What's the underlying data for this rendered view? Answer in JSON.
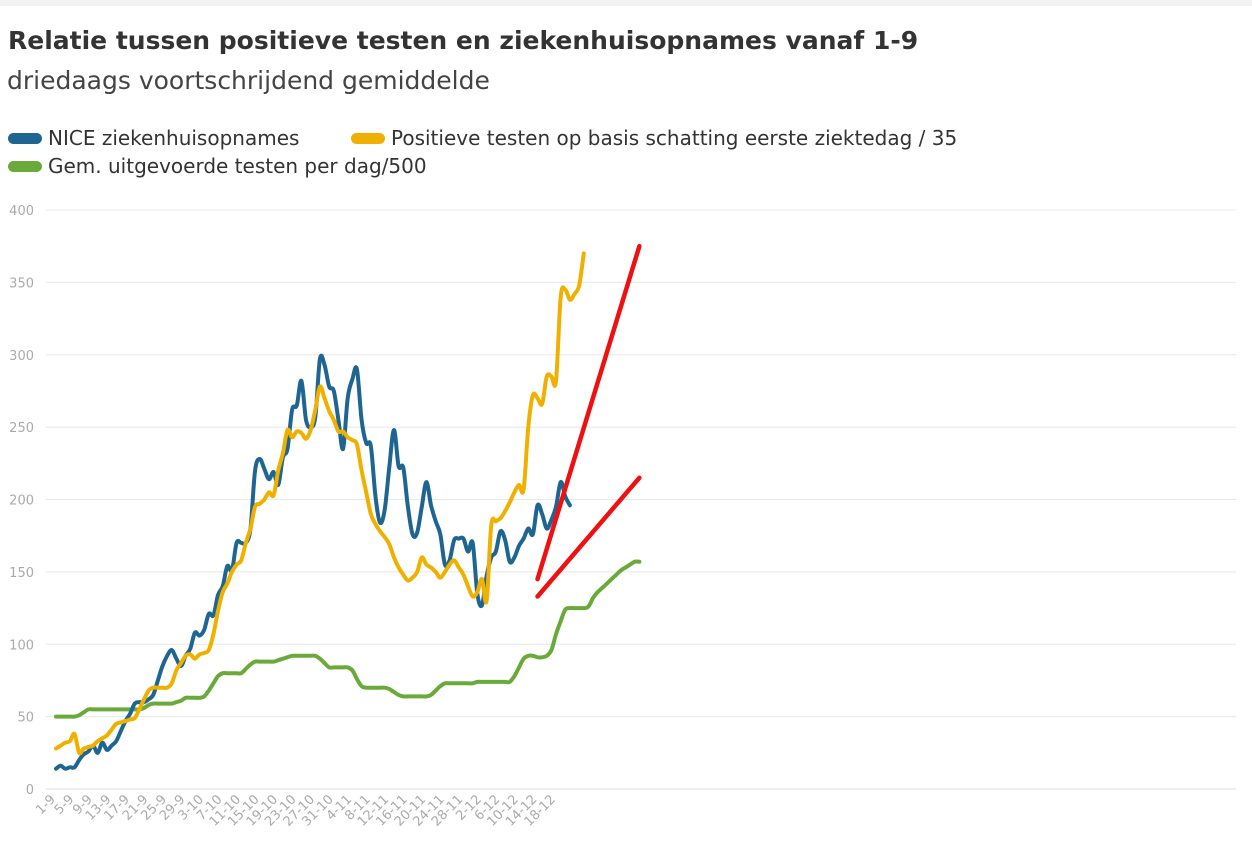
{
  "chart_data": {
    "type": "line",
    "title": "Relatie tussen positieve testen en ziekenhuisopnames vanaf 1-9",
    "subtitle": "driedaags voortschrijdend gemiddelde",
    "ylim": [
      0,
      400
    ],
    "yticks": [
      0,
      50,
      100,
      150,
      200,
      250,
      300,
      350,
      400
    ],
    "grid": true,
    "legend_position": "top-left",
    "x_tick_labels": [
      "1-9",
      "5-9",
      "9-9",
      "13-9",
      "17-9",
      "21-9",
      "25-9",
      "29-9",
      "3-10",
      "7-10",
      "11-10",
      "15-10",
      "19-10",
      "23-10",
      "27-10",
      "31-10",
      "4-11",
      "8-11",
      "12-11",
      "16-11",
      "20-11",
      "24-11",
      "28-11",
      "2-12",
      "6-12",
      "10-12",
      "14-12",
      "18-12"
    ],
    "series": [
      {
        "name": "NICE ziekenhuisopnames",
        "color": "#1f6591",
        "values": [
          14,
          16,
          14,
          15,
          15,
          20,
          24,
          26,
          30,
          25,
          32,
          27,
          30,
          33,
          40,
          47,
          52,
          59,
          60,
          60,
          62,
          65,
          75,
          85,
          92,
          96,
          90,
          85,
          92,
          97,
          108,
          106,
          110,
          121,
          120,
          134,
          140,
          154,
          151,
          170,
          170,
          170,
          180,
          220,
          228,
          221,
          214,
          219,
          210,
          229,
          235,
          262,
          265,
          282,
          255,
          250,
          257,
          297,
          293,
          278,
          275,
          255,
          235,
          270,
          283,
          290,
          255,
          239,
          237,
          202,
          184,
          193,
          223,
          248,
          223,
          222,
          195,
          176,
          177,
          195,
          212,
          196,
          185,
          176,
          155,
          158,
          172,
          173,
          173,
          164,
          170,
          135,
          127,
          147,
          160,
          164,
          178,
          172,
          157,
          160,
          168,
          173,
          180,
          176,
          196,
          190,
          180,
          186,
          195,
          212,
          202,
          196
        ],
        "x_end_index": 111
      },
      {
        "name": "Positieve testen op basis schatting eerste ziektedag / 35",
        "color": "#f0b000",
        "values": [
          28,
          30,
          32,
          33,
          38,
          25,
          28,
          29,
          30,
          33,
          35,
          37,
          41,
          45,
          46,
          47,
          48,
          49,
          55,
          62,
          68,
          70,
          70,
          70,
          70,
          73,
          82,
          87,
          92,
          93,
          90,
          93,
          94,
          96,
          107,
          123,
          136,
          142,
          150,
          155,
          158,
          170,
          180,
          195,
          197,
          200,
          205,
          203,
          220,
          232,
          248,
          243,
          247,
          246,
          242,
          248,
          262,
          278,
          270,
          261,
          255,
          247,
          247,
          243,
          241,
          238,
          220,
          205,
          190,
          183,
          178,
          174,
          169,
          160,
          153,
          148,
          144,
          146,
          150,
          160,
          155,
          153,
          150,
          146,
          150,
          155,
          158,
          153,
          148,
          140,
          133,
          136,
          145,
          130,
          182,
          185,
          187,
          192,
          198,
          205,
          210,
          207,
          250,
          272,
          270,
          266,
          285,
          285,
          282,
          340,
          345,
          338,
          342,
          348,
          370
        ],
        "x_end_index": 114
      },
      {
        "name": "Gem. uitgevoerde testen per dag/500",
        "color": "#6aaa3a",
        "values": [
          50,
          50,
          50,
          50,
          50,
          51,
          53,
          55,
          55,
          55,
          55,
          55,
          55,
          55,
          55,
          55,
          55,
          55,
          55,
          56,
          58,
          59,
          59,
          59,
          59,
          59,
          60,
          61,
          63,
          63,
          63,
          63,
          64,
          68,
          73,
          78,
          80,
          80,
          80,
          80,
          80,
          83,
          86,
          88,
          88,
          88,
          88,
          88,
          89,
          90,
          91,
          92,
          92,
          92,
          92,
          92,
          92,
          90,
          87,
          84,
          84,
          84,
          84,
          84,
          82,
          76,
          71,
          70,
          70,
          70,
          70,
          70,
          69,
          67,
          65,
          64,
          64,
          64,
          64,
          64,
          64,
          65,
          68,
          71,
          73,
          73,
          73,
          73,
          73,
          73,
          73,
          74,
          74,
          74,
          74,
          74,
          74,
          74,
          74,
          78,
          84,
          90,
          92,
          92,
          91,
          91,
          92,
          96,
          107,
          116,
          124,
          125,
          125,
          125,
          125,
          126,
          132,
          136,
          139,
          142,
          145,
          148,
          151,
          153,
          155,
          157,
          157
        ],
        "x_end_index": 126
      }
    ],
    "annotations": [
      {
        "type": "line",
        "color": "#ee1111",
        "from": {
          "x": 104,
          "y": 145
        },
        "to": {
          "x": 126,
          "y": 375
        }
      },
      {
        "type": "line",
        "color": "#ee1111",
        "from": {
          "x": 104,
          "y": 133
        },
        "to": {
          "x": 126,
          "y": 215
        }
      }
    ]
  }
}
